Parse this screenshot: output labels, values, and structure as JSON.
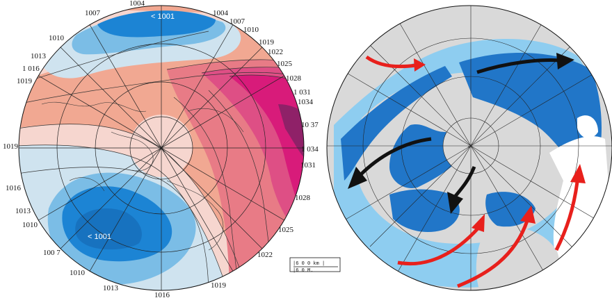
{
  "left_map": {
    "low_north_label": "< 1001",
    "low_south_label": "< 1001",
    "isobar_labels": [
      {
        "text": "1004",
        "pos": "top"
      },
      {
        "text": "1007",
        "pos": "top-left"
      },
      {
        "text": "1004",
        "pos": "top-right-1"
      },
      {
        "text": "1007",
        "pos": "top-right-2"
      },
      {
        "text": "1010",
        "pos": "top-right-3"
      },
      {
        "text": "1019",
        "pos": "right-1"
      },
      {
        "text": "1022",
        "pos": "right-2"
      },
      {
        "text": "1025",
        "pos": "right-3"
      },
      {
        "text": "1028",
        "pos": "right-4"
      },
      {
        "text": "1 031",
        "pos": "right-5"
      },
      {
        "text": "1034",
        "pos": "right-6"
      },
      {
        "text": "10 37",
        "pos": "right-7"
      },
      {
        "text": "1 034",
        "pos": "right-8"
      },
      {
        "text": "1031",
        "pos": "right-9"
      },
      {
        "text": "1028",
        "pos": "right-10"
      },
      {
        "text": "1025",
        "pos": "right-11"
      },
      {
        "text": "1022",
        "pos": "bottom-right-1"
      },
      {
        "text": "1019",
        "pos": "bottom-right-2"
      },
      {
        "text": "1016",
        "pos": "bottom"
      },
      {
        "text": "1013",
        "pos": "bottom-left-1"
      },
      {
        "text": "1010",
        "pos": "bottom-left-2"
      },
      {
        "text": "100 7",
        "pos": "left-1"
      },
      {
        "text": "1010",
        "pos": "left-2"
      },
      {
        "text": "1013",
        "pos": "left-3"
      },
      {
        "text": "1016",
        "pos": "left-4"
      },
      {
        "text": "1019",
        "pos": "left-5"
      },
      {
        "text": "1019",
        "pos": "left-6"
      },
      {
        "text": "1 016",
        "pos": "left-7"
      },
      {
        "text": "1013",
        "pos": "left-8"
      },
      {
        "text": "1010",
        "pos": "left-9"
      }
    ],
    "scale": {
      "line1": "|6 0 0 km  |",
      "line2": "|6 0 M."
    }
  },
  "right_map": {
    "colors": {
      "ocean_light": "#8ecdf0",
      "ocean_dark": "#2176c8",
      "land": "#d9d9d9",
      "ice_white": "#ffffff",
      "arrow_warm": "#e8201c",
      "arrow_cold": "#111111"
    }
  },
  "left_colors": {
    "high_strong": "#d81b7a",
    "high_mid": "#e87b86",
    "high_light": "#f1a892",
    "neutral": "#f6d6cf",
    "low_light": "#cfe3ef",
    "low_mid": "#7bbde6",
    "low_strong": "#1c84d4"
  }
}
